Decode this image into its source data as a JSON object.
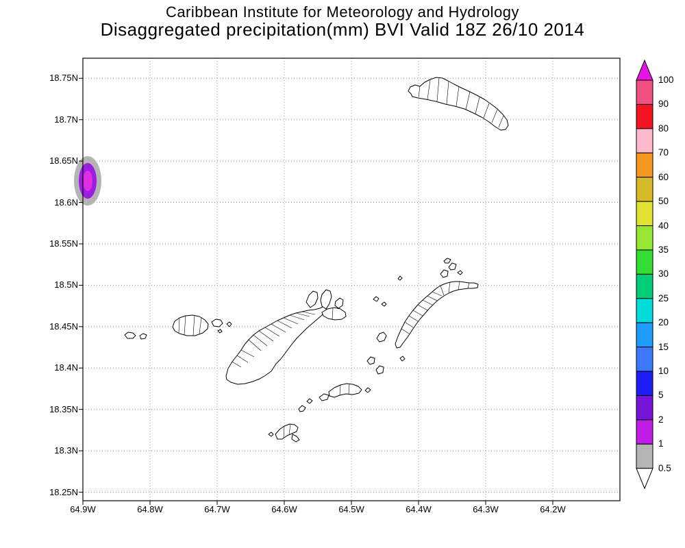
{
  "header": {
    "title_line1": "Caribbean Institute for Meteorology and Hydrology",
    "title_line2": "Disaggregated precipitation(mm) BVI Valid 18Z 26/10 2014"
  },
  "axes": {
    "y_ticks": [
      "18.75N",
      "18.7N",
      "18.65N",
      "18.6N",
      "18.55N",
      "18.5N",
      "18.45N",
      "18.4N",
      "18.35N",
      "18.3N",
      "18.25N"
    ],
    "x_ticks": [
      "64.9W",
      "64.8W",
      "64.7W",
      "64.6W",
      "64.5W",
      "64.4W",
      "64.3W",
      "64.2W"
    ]
  },
  "colorbar": {
    "labels": [
      "100",
      "90",
      "80",
      "70",
      "60",
      "50",
      "40",
      "35",
      "30",
      "25",
      "20",
      "15",
      "10",
      "5",
      "2",
      "1",
      "0.5"
    ],
    "segments": [
      {
        "range": "90-100",
        "color": "#f0507d"
      },
      {
        "range": "80-90",
        "color": "#f51423"
      },
      {
        "range": "70-80",
        "color": "#ffb9cd"
      },
      {
        "range": "60-70",
        "color": "#f5991e"
      },
      {
        "range": "50-60",
        "color": "#d7b928"
      },
      {
        "range": "40-50",
        "color": "#e1e132"
      },
      {
        "range": "35-40",
        "color": "#96e632"
      },
      {
        "range": "30-35",
        "color": "#32dc32"
      },
      {
        "range": "25-30",
        "color": "#00cd78"
      },
      {
        "range": "20-25",
        "color": "#00dcdc"
      },
      {
        "range": "15-20",
        "color": "#1e9bff"
      },
      {
        "range": "10-15",
        "color": "#3c78ff"
      },
      {
        "range": "5-10",
        "color": "#1e1ef5"
      },
      {
        "range": "2-5",
        "color": "#7814d7"
      },
      {
        "range": "1-2",
        "color": "#be1ee6"
      },
      {
        "range": "0.5-1",
        "color": "#b4b4b4"
      }
    ],
    "arrow_top_color": "#e614e6",
    "arrow_bottom_color": "#ffffff"
  },
  "precip_blob": {
    "approx_lon": "64.9W",
    "approx_lat": "18.62N",
    "colors": [
      "#b4b4b4",
      "#9b1ee1",
      "#e12ee1"
    ]
  }
}
